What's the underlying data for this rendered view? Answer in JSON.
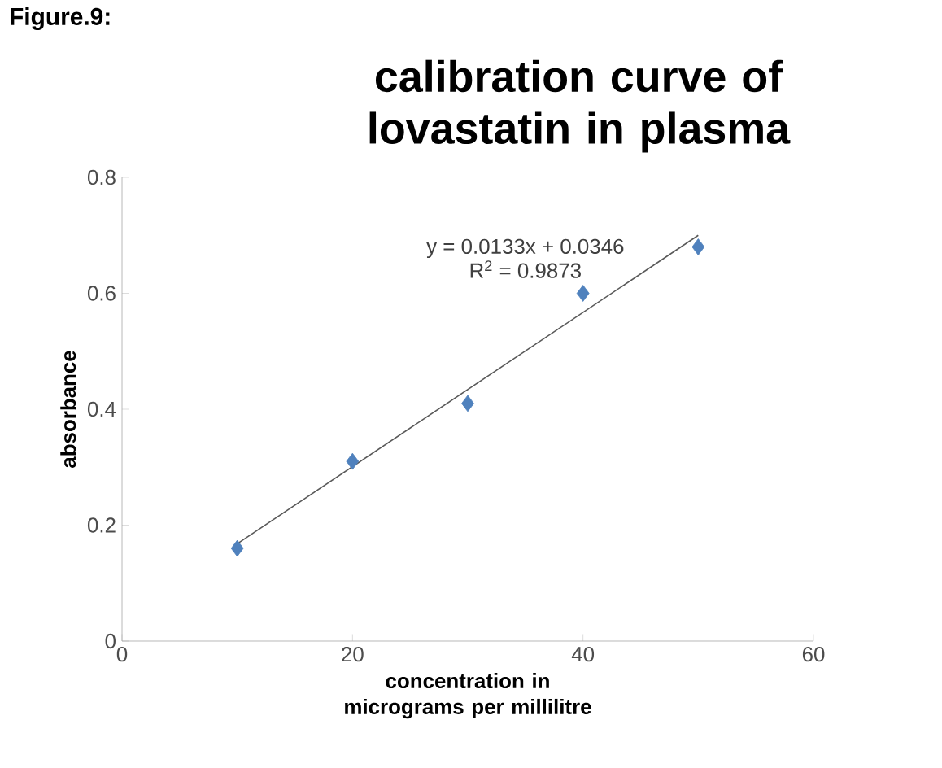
{
  "chart_data": {
    "type": "scatter",
    "title": "calibration curve of lovastatin in plasma",
    "xlabel": "concentration in micrograms per millilitre",
    "ylabel": "absorbance",
    "annotations": [
      "Figure.9:",
      "y = 0.0133x + 0.0346",
      "R$^{2}$ = 0.9873"
    ],
    "xlim": [
      0,
      60
    ],
    "xticks": [
      0,
      20,
      40,
      60
    ],
    "ylim": [
      0,
      0.8
    ],
    "yticks": [
      0,
      0.2,
      0.4,
      0.6,
      0.8
    ],
    "marker": "diamond",
    "series": [
      {
        "color": "#4f81bd",
        "x": [
          10,
          20,
          30,
          40,
          50
        ],
        "values": [
          0.16,
          0.31,
          0.41,
          0.6,
          0.68
        ]
      },
      {
        "type": "line",
        "color": "#595959",
        "x": [
          10,
          50
        ],
        "values": [
          0.168,
          0.7
        ],
        "marker": "none",
        "line_style": "solid"
      }
    ]
  }
}
